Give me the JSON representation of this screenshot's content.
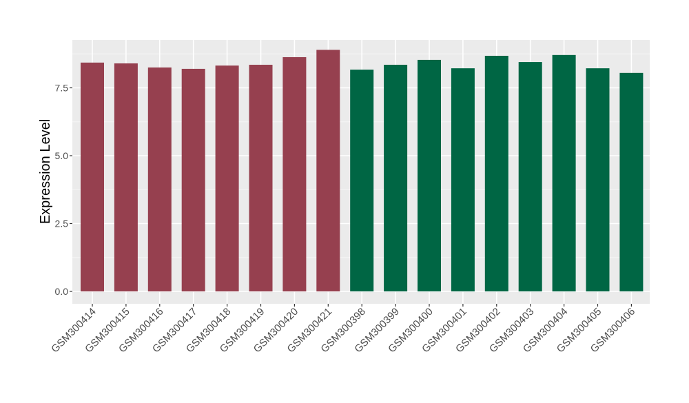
{
  "chart_data": {
    "type": "bar",
    "title": "",
    "xlabel": "",
    "ylabel": "Expression Level",
    "ylim": [
      0,
      9.1
    ],
    "yticks": [
      0.0,
      2.5,
      5.0,
      7.5
    ],
    "ytick_labels": [
      "0.0",
      "2.5",
      "5.0",
      "7.5"
    ],
    "grid": true,
    "legend": "none",
    "categories": [
      "GSM300414",
      "GSM300415",
      "GSM300416",
      "GSM300417",
      "GSM300418",
      "GSM300419",
      "GSM300420",
      "GSM300421",
      "GSM300398",
      "GSM300399",
      "GSM300400",
      "GSM300401",
      "GSM300402",
      "GSM300403",
      "GSM300404",
      "GSM300405",
      "GSM300406"
    ],
    "values": [
      8.43,
      8.4,
      8.25,
      8.2,
      8.32,
      8.35,
      8.63,
      8.9,
      8.17,
      8.35,
      8.53,
      8.22,
      8.68,
      8.45,
      8.71,
      8.22,
      8.05
    ],
    "groups": [
      0,
      0,
      0,
      0,
      0,
      0,
      0,
      0,
      1,
      1,
      1,
      1,
      1,
      1,
      1,
      1,
      1
    ],
    "group_colors": [
      "#96404F",
      "#006644"
    ],
    "colors": {
      "panel": "#EBEBEB",
      "grid_major": "#FFFFFF",
      "grid_minor": "#F5F5F5",
      "axis_text": "#4D4D4D",
      "tick": "#333333"
    }
  }
}
